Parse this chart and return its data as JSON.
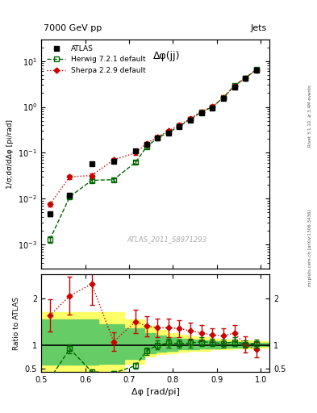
{
  "title_left": "7000 GeV pp",
  "title_right": "Jets",
  "annotation": "ATLAS_2011_S8971293",
  "plot_title": "Δφ(jj)",
  "ylabel_main": "1/σ;dσ/dΔφ [pi/rad]",
  "ylabel_ratio": "Ratio to ATLAS",
  "xlabel": "Δφ [rad/pi]",
  "right_label": "mcplots.cern.ch [arXiv:1306.3436]",
  "right_label2": "Rivet 3.1.10, ≥ 3.4M events",
  "atlas_x": [
    0.52,
    0.565,
    0.615,
    0.665,
    0.715,
    0.74,
    0.765,
    0.79,
    0.815,
    0.84,
    0.865,
    0.89,
    0.915,
    0.94,
    0.965,
    0.99
  ],
  "atlas_y": [
    0.0046,
    0.012,
    0.058,
    0.065,
    0.11,
    0.155,
    0.21,
    0.27,
    0.37,
    0.52,
    0.73,
    0.95,
    1.55,
    2.7,
    4.2,
    6.3
  ],
  "atlas_yerr": [
    0.0005,
    0.001,
    0.004,
    0.005,
    0.008,
    0.01,
    0.014,
    0.018,
    0.025,
    0.035,
    0.05,
    0.07,
    0.1,
    0.18,
    0.28,
    0.42
  ],
  "herwig_x": [
    0.52,
    0.565,
    0.615,
    0.665,
    0.715,
    0.74,
    0.765,
    0.79,
    0.815,
    0.84,
    0.865,
    0.89,
    0.915,
    0.94,
    0.965,
    0.99
  ],
  "herwig_y": [
    0.0013,
    0.011,
    0.025,
    0.026,
    0.062,
    0.135,
    0.21,
    0.28,
    0.38,
    0.54,
    0.78,
    1.0,
    1.6,
    2.9,
    4.3,
    6.5
  ],
  "herwig_yerr": [
    0.0002,
    0.001,
    0.002,
    0.002,
    0.005,
    0.01,
    0.015,
    0.02,
    0.028,
    0.04,
    0.055,
    0.07,
    0.11,
    0.2,
    0.3,
    0.45
  ],
  "sherpa_x": [
    0.52,
    0.565,
    0.615,
    0.665,
    0.715,
    0.74,
    0.765,
    0.79,
    0.815,
    0.84,
    0.865,
    0.89,
    0.915,
    0.94,
    0.965,
    0.99
  ],
  "sherpa_y": [
    0.0075,
    0.03,
    0.032,
    0.07,
    0.1,
    0.16,
    0.22,
    0.3,
    0.4,
    0.56,
    0.78,
    1.02,
    1.6,
    2.85,
    4.25,
    6.4
  ],
  "sherpa_yerr": [
    0.0008,
    0.003,
    0.003,
    0.006,
    0.009,
    0.013,
    0.017,
    0.022,
    0.03,
    0.042,
    0.057,
    0.075,
    0.115,
    0.2,
    0.3,
    0.45
  ],
  "herwig_ratio": [
    0.28,
    0.92,
    0.43,
    0.4,
    0.56,
    0.87,
    1.0,
    1.04,
    1.03,
    1.04,
    1.07,
    1.05,
    1.03,
    1.07,
    1.02,
    1.03
  ],
  "herwig_ratio_err": [
    0.06,
    0.09,
    0.05,
    0.05,
    0.06,
    0.08,
    0.09,
    0.09,
    0.09,
    0.1,
    0.09,
    0.08,
    0.08,
    0.09,
    0.08,
    0.08
  ],
  "sherpa_ratio_x": [
    0.52,
    0.565,
    0.615,
    0.665,
    0.715,
    0.74,
    0.765,
    0.79,
    0.815,
    0.84,
    0.865,
    0.89,
    0.915,
    0.94,
    0.965,
    0.99
  ],
  "sherpa_ratio": [
    1.63,
    2.05,
    2.3,
    1.07,
    1.5,
    1.4,
    1.37,
    1.37,
    1.35,
    1.3,
    1.26,
    1.21,
    1.2,
    1.25,
    1.01,
    0.9
  ],
  "sherpa_ratio_err": [
    0.35,
    0.4,
    0.45,
    0.2,
    0.25,
    0.22,
    0.2,
    0.2,
    0.18,
    0.18,
    0.17,
    0.15,
    0.15,
    0.17,
    0.17,
    0.17
  ],
  "yellow_band_x": [
    0.5,
    0.57,
    0.63,
    0.69,
    0.735,
    0.76,
    0.785,
    0.81,
    0.835,
    0.86,
    0.885,
    0.91,
    0.935,
    0.96,
    0.985,
    1.02
  ],
  "yellow_band_lo": [
    0.42,
    0.42,
    0.42,
    0.6,
    0.75,
    0.8,
    0.83,
    0.85,
    0.87,
    0.88,
    0.9,
    0.91,
    0.92,
    0.93,
    0.94,
    0.94
  ],
  "yellow_band_hi": [
    1.7,
    1.7,
    1.7,
    1.55,
    1.4,
    1.32,
    1.26,
    1.22,
    1.19,
    1.17,
    1.14,
    1.12,
    1.1,
    1.09,
    1.08,
    1.08
  ],
  "green_band_x": [
    0.5,
    0.57,
    0.63,
    0.69,
    0.735,
    0.76,
    0.785,
    0.81,
    0.835,
    0.86,
    0.885,
    0.91,
    0.935,
    0.96,
    0.985,
    1.02
  ],
  "green_band_lo": [
    0.58,
    0.58,
    0.6,
    0.7,
    0.82,
    0.86,
    0.88,
    0.9,
    0.91,
    0.92,
    0.93,
    0.94,
    0.95,
    0.96,
    0.97,
    0.97
  ],
  "green_band_hi": [
    1.55,
    1.55,
    1.45,
    1.35,
    1.25,
    1.2,
    1.16,
    1.14,
    1.12,
    1.1,
    1.08,
    1.07,
    1.06,
    1.05,
    1.04,
    1.04
  ],
  "xlim": [
    0.5,
    1.02
  ],
  "ylim_main": [
    0.0003,
    30
  ],
  "ylim_ratio": [
    0.43,
    2.5
  ],
  "atlas_color": "#000000",
  "herwig_color": "#006600",
  "sherpa_color": "#cc0000",
  "yellow_color": "#ffff66",
  "green_color": "#66cc66"
}
